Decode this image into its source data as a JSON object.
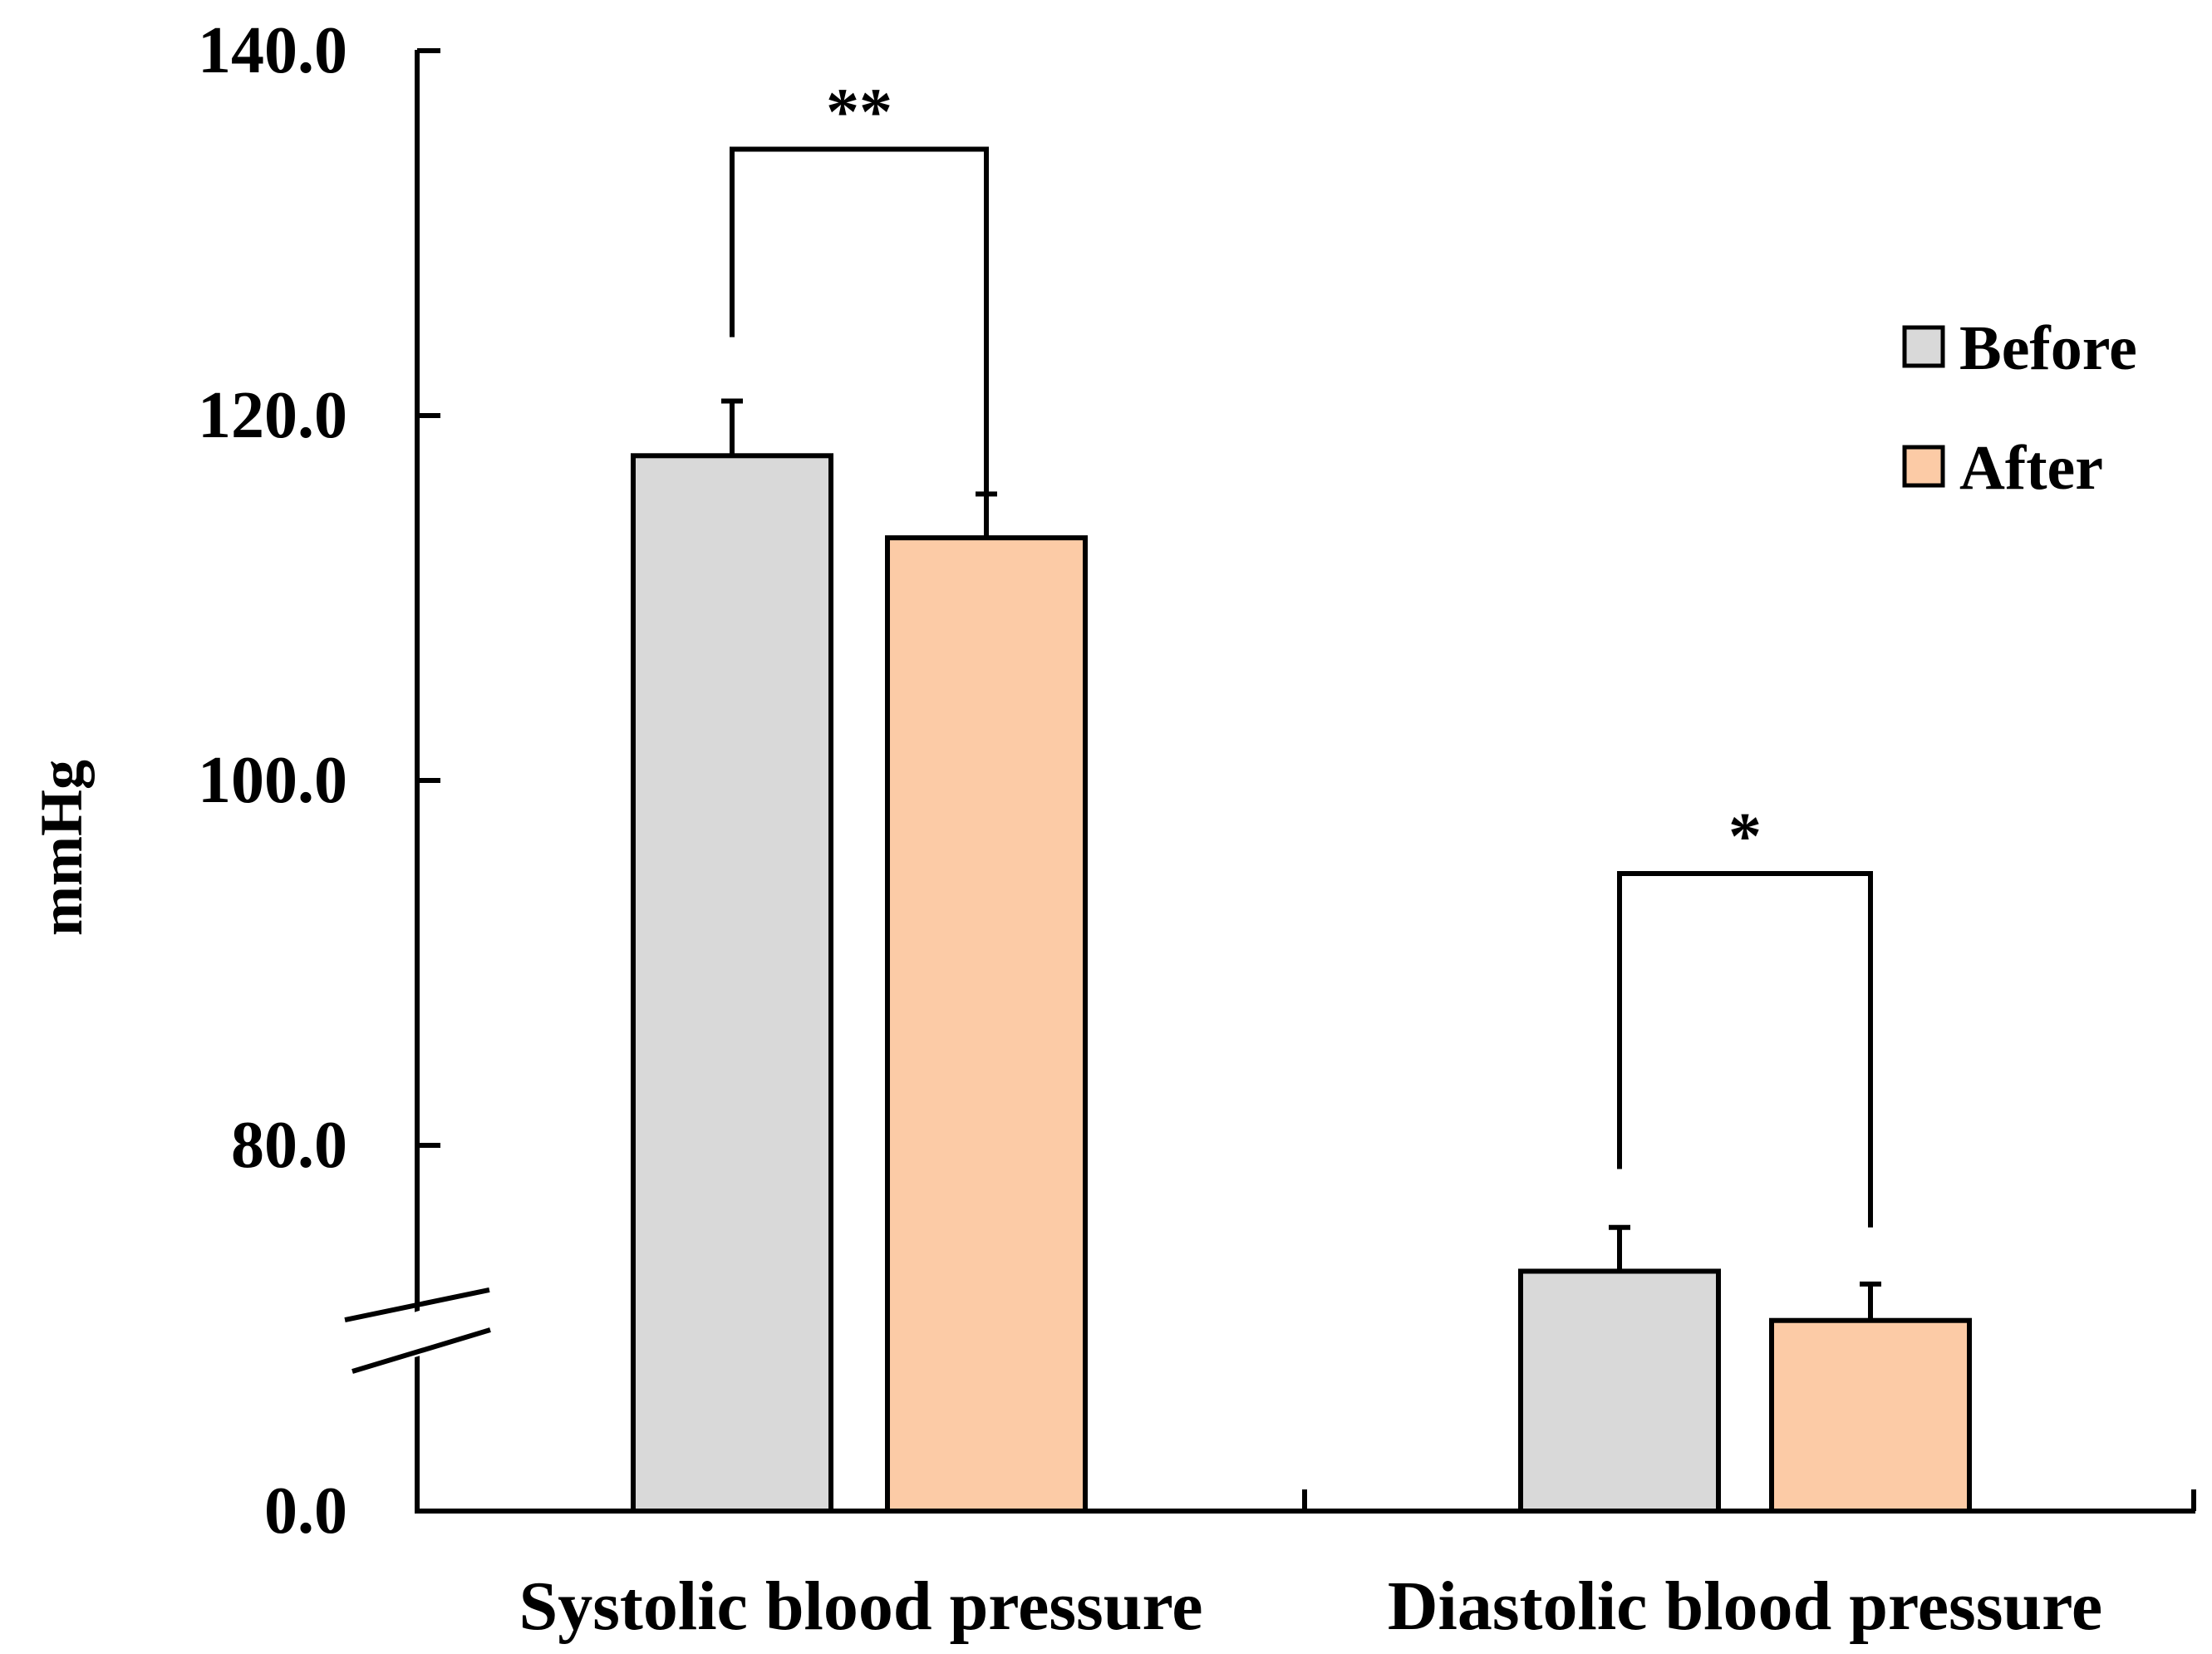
{
  "chart_data": {
    "type": "bar",
    "title": "",
    "xlabel": "",
    "ylabel": "mmHg",
    "categories": [
      "Systolic blood pressure",
      "Diastolic blood pressure"
    ],
    "series": [
      {
        "name": "Before",
        "color": "#d9d9d9",
        "values": [
          117.8,
          73.1
        ],
        "errors": [
          3.0,
          2.4
        ]
      },
      {
        "name": "After",
        "color": "#fccba6",
        "values": [
          113.3,
          70.4
        ],
        "errors": [
          2.4,
          2.0
        ]
      }
    ],
    "yticks": [
      {
        "value": 0,
        "label": "0.0"
      },
      {
        "value": 80,
        "label": "80.0"
      },
      {
        "value": 100,
        "label": "100.0"
      },
      {
        "value": 120,
        "label": "120.0"
      },
      {
        "value": 140,
        "label": "140.0"
      }
    ],
    "ylim": [
      60,
      140
    ],
    "axis_break": "between 0.0 and 80.0",
    "annotations": [
      {
        "category": 0,
        "label": "**",
        "left_end": 124.3,
        "right_end": 114.0,
        "top": 134.6
      },
      {
        "category": 1,
        "label": "*",
        "left_end": 78.7,
        "right_end": 75.5,
        "top": 94.9
      }
    ],
    "legend": {
      "position": "top-right",
      "entries": [
        "Before",
        "After"
      ]
    }
  }
}
